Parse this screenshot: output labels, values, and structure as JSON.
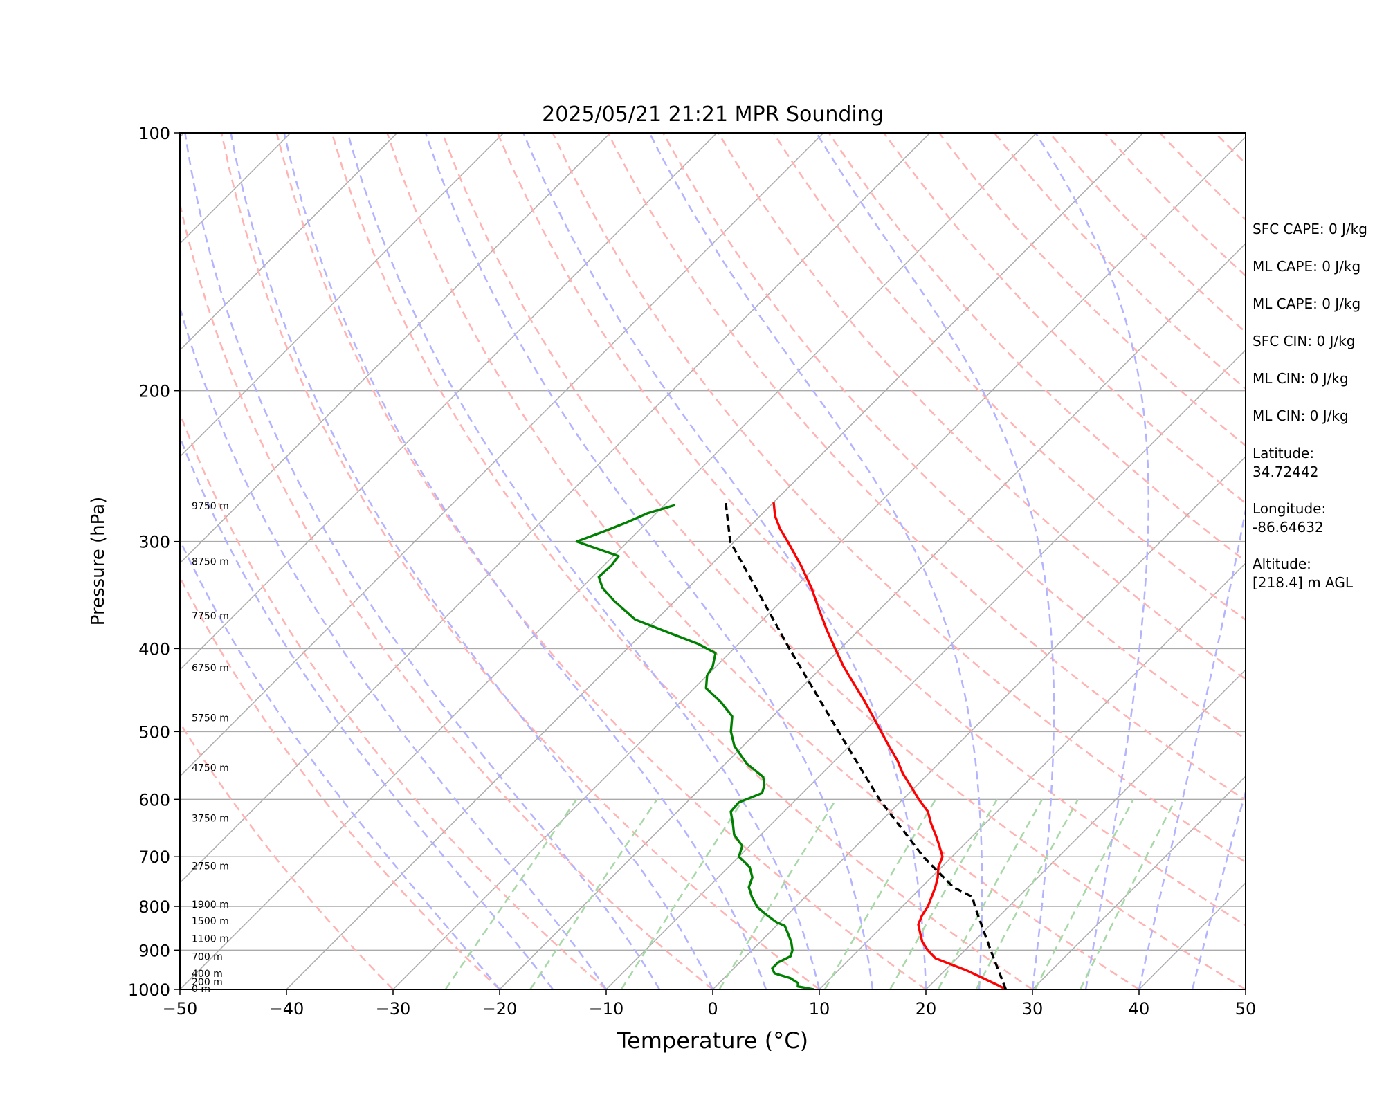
{
  "chart_data": {
    "type": "line",
    "title": "2025/05/21 21:21 MPR Sounding",
    "xlabel": "Temperature (°C)",
    "ylabel": "Pressure (hPa)",
    "xlim": [
      -50,
      50
    ],
    "ylim": [
      1000,
      100
    ],
    "y_scale": "log",
    "skew": "skew-T log-p",
    "x_ticks": [
      "−50",
      "−40",
      "−30",
      "−20",
      "−10",
      "0",
      "10",
      "20",
      "30",
      "40",
      "50"
    ],
    "y_ticks": [
      "100",
      "200",
      "300",
      "400",
      "500",
      "600",
      "700",
      "800",
      "900",
      "1000"
    ],
    "grid": true,
    "height_labels": [
      {
        "p": 1000,
        "label": "0 m"
      },
      {
        "p": 982,
        "label": "200 m"
      },
      {
        "p": 960,
        "label": "400 m"
      },
      {
        "p": 917,
        "label": "700 m"
      },
      {
        "p": 874,
        "label": "1100 m"
      },
      {
        "p": 833,
        "label": "1500 m"
      },
      {
        "p": 797,
        "label": "1900 m"
      },
      {
        "p": 719,
        "label": "2750 m"
      },
      {
        "p": 632,
        "label": "3750 m"
      },
      {
        "p": 552,
        "label": "4750 m"
      },
      {
        "p": 483,
        "label": "5750 m"
      },
      {
        "p": 422,
        "label": "6750 m"
      },
      {
        "p": 367,
        "label": "7750 m"
      },
      {
        "p": 317,
        "label": "8750 m"
      },
      {
        "p": 273,
        "label": "9750 m"
      }
    ],
    "series": [
      {
        "color": "#ff0000",
        "p": [
          1000,
          990,
          950,
          920,
          900,
          880,
          860,
          840,
          820,
          800,
          760,
          740,
          720,
          700,
          680,
          660,
          640,
          620,
          600,
          580,
          560,
          540,
          520,
          500,
          480,
          460,
          440,
          420,
          400,
          380,
          360,
          340,
          320,
          300,
          290,
          280,
          270
        ],
        "values": [
          27.5,
          26.5,
          22,
          18,
          16.5,
          15.2,
          14.2,
          13.2,
          12.7,
          12.4,
          11.3,
          10.6,
          9.7,
          9.1,
          7.8,
          6.4,
          4.9,
          3.5,
          1.5,
          -0.4,
          -2.4,
          -4.2,
          -6.3,
          -8.4,
          -10.6,
          -12.9,
          -15.4,
          -18.0,
          -20.5,
          -23.1,
          -25.7,
          -28.4,
          -31.5,
          -35.0,
          -36.9,
          -38.6,
          -40.0
        ]
      },
      {
        "color": "#008000",
        "p": [
          1000,
          992,
          983,
          970,
          958,
          945,
          930,
          915,
          900,
          880,
          862,
          843,
          835,
          820,
          802,
          780,
          760,
          740,
          720,
          700,
          680,
          660,
          640,
          620,
          605,
          590,
          578,
          565,
          545,
          520,
          500,
          480,
          462,
          445,
          430,
          420,
          405,
          395,
          383,
          370,
          352,
          340,
          330,
          320,
          312,
          300,
          292,
          285,
          278,
          272
        ],
        "values": [
          9.5,
          7.7,
          7.4,
          6.2,
          4.3,
          3.6,
          3.6,
          4.2,
          3.8,
          2.9,
          1.9,
          0.8,
          -0.3,
          -1.8,
          -3.5,
          -5.0,
          -6.2,
          -6.8,
          -8.0,
          -10.0,
          -10.7,
          -12.5,
          -13.7,
          -15.0,
          -15.1,
          -13.8,
          -14.3,
          -15.2,
          -18.0,
          -20.8,
          -22.5,
          -23.8,
          -26.2,
          -28.9,
          -30.0,
          -30.3,
          -31.3,
          -33.8,
          -37.7,
          -42.0,
          -45.7,
          -48.0,
          -49.4,
          -49.3,
          -49.5,
          -54.8,
          -53.2,
          -51.9,
          -50.8,
          -49.0
        ]
      },
      {
        "color": "#000000",
        "dash": true,
        "p": [
          1000,
          900,
          800,
          780,
          760,
          700,
          600,
          500,
          400,
          300,
          270
        ],
        "values": [
          27.5,
          22.4,
          16.8,
          15.7,
          13.0,
          7.3,
          -2.2,
          -12.4,
          -24.8,
          -40.4,
          -44.5
        ]
      }
    ]
  },
  "stats": {
    "sfc_cape": "SFC CAPE: 0 J/kg",
    "ml_cape_1": "ML CAPE: 0 J/kg",
    "ml_cape_2": "ML CAPE: 0 J/kg",
    "sfc_cin": "SFC CIN: 0 J/kg",
    "ml_cin_1": "ML CIN: 0 J/kg",
    "ml_cin_2": "ML CIN: 0 J/kg",
    "latitude_label": "Latitude:",
    "latitude_value": "34.72442",
    "longitude_label": "Longitude:",
    "longitude_value": "-86.64632",
    "altitude_label": "Altitude:",
    "altitude_value": "[218.4] m AGL"
  },
  "colors": {
    "isotherm": "#aaaaaa",
    "dry_adiabat": "#ffb3b3",
    "moist_adiabat": "#b3b3ff",
    "mixing_ratio": "#a8d8a8"
  }
}
